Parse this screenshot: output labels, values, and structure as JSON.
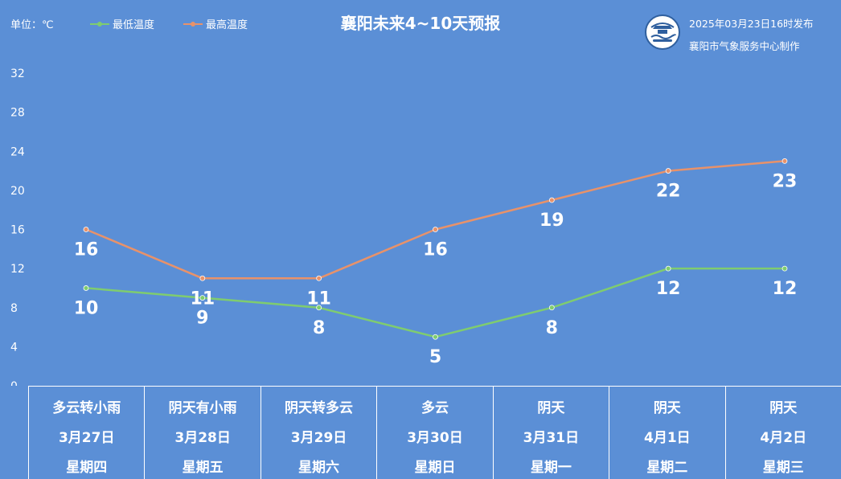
{
  "header": {
    "unit_label": "单位：℃",
    "title": "襄阳未来4~10天预报",
    "publish_time": "2025年03月23日16时发布",
    "publisher": "襄阳市气象服务中心制作",
    "logo_text": "襄阳气象"
  },
  "colors": {
    "background": "#5b8fd6",
    "low_line": "#7fcc6f",
    "high_line": "#e8926a",
    "text": "#ffffff"
  },
  "chart_data": {
    "type": "line",
    "title": "襄阳未来4~10天预报",
    "ylabel": "单位：℃",
    "ylim": [
      0,
      32
    ],
    "yticks": [
      0,
      4,
      8,
      12,
      16,
      20,
      24,
      28,
      32
    ],
    "grid": false,
    "legend_position": "top-left",
    "categories": [
      "3月27日",
      "3月28日",
      "3月29日",
      "3月30日",
      "3月31日",
      "4月1日",
      "4月2日"
    ],
    "series": [
      {
        "name": "最低温度",
        "values": [
          10,
          9,
          8,
          5,
          8,
          12,
          12
        ]
      },
      {
        "name": "最高温度",
        "values": [
          16,
          11,
          11,
          16,
          19,
          22,
          23
        ]
      }
    ]
  },
  "table": {
    "days": [
      {
        "weather": "多云转小雨",
        "date": "3月27日",
        "weekday": "星期四"
      },
      {
        "weather": "阴天有小雨",
        "date": "3月28日",
        "weekday": "星期五"
      },
      {
        "weather": "阴天转多云",
        "date": "3月29日",
        "weekday": "星期六"
      },
      {
        "weather": "多云",
        "date": "3月30日",
        "weekday": "星期日"
      },
      {
        "weather": "阴天",
        "date": "3月31日",
        "weekday": "星期一"
      },
      {
        "weather": "阴天",
        "date": "4月1日",
        "weekday": "星期二"
      },
      {
        "weather": "阴天",
        "date": "4月2日",
        "weekday": "星期三"
      }
    ]
  }
}
